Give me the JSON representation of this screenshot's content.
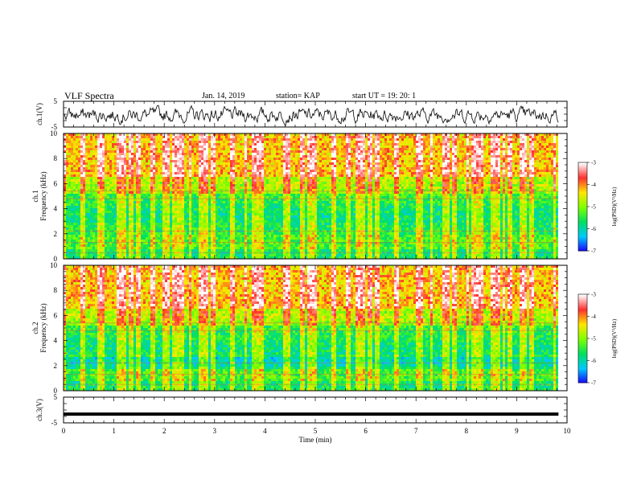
{
  "header": {
    "title": "VLF Spectra",
    "date": "Jan. 14, 2019",
    "station": "station= KAP",
    "start": "start  UT =   19: 20: 1"
  },
  "chart_data": {
    "type": "heatmap",
    "x_axis": {
      "label": "Time  (min)",
      "range": [
        0,
        10
      ],
      "ticks": [
        "0",
        "1",
        "2",
        "3",
        "4",
        "5",
        "6",
        "7",
        "8",
        "9",
        "10"
      ],
      "data_end": 9.83
    },
    "panels": [
      {
        "kind": "waveform",
        "ylabel": "ch.1(V)",
        "ylim": [
          -5,
          5
        ],
        "ticks": [
          "5",
          "-5"
        ],
        "mean": -0.3,
        "amplitude": 2.5
      },
      {
        "kind": "spectrogram",
        "ylabel_line1": "ch.1",
        "ylabel_line2": "Frequency  (kHz)",
        "ylim": [
          0,
          10
        ],
        "ticks": [
          "0",
          "2",
          "4",
          "6",
          "8",
          "10"
        ],
        "colorbar": {
          "label": "log(PSD)(V²/Hz)",
          "range": [
            -7,
            -3
          ],
          "ticks": [
            "-3",
            "-4",
            "-5",
            "-6",
            "-7"
          ]
        }
      },
      {
        "kind": "spectrogram",
        "ylabel_line1": "ch.2",
        "ylabel_line2": "Frequency  (kHz)",
        "ylim": [
          0,
          10
        ],
        "ticks": [
          "0",
          "2",
          "4",
          "6",
          "8",
          "10"
        ],
        "colorbar": {
          "label": "log(PSD)(V²/Hz)",
          "range": [
            -7,
            -3
          ],
          "ticks": [
            "-3",
            "-4",
            "-5",
            "-6",
            "-7"
          ]
        }
      },
      {
        "kind": "waveform",
        "ylabel": "ch.3(V)",
        "ylim": [
          -5,
          5
        ],
        "ticks": [
          "5",
          "-5"
        ],
        "mean": -1.6,
        "amplitude": 0.0
      }
    ],
    "colormap": [
      "#1a00ff",
      "#00c8ff",
      "#00e060",
      "#7fff00",
      "#ffe600",
      "#ff3030",
      "#ffffff"
    ],
    "line_color": "#000000"
  }
}
